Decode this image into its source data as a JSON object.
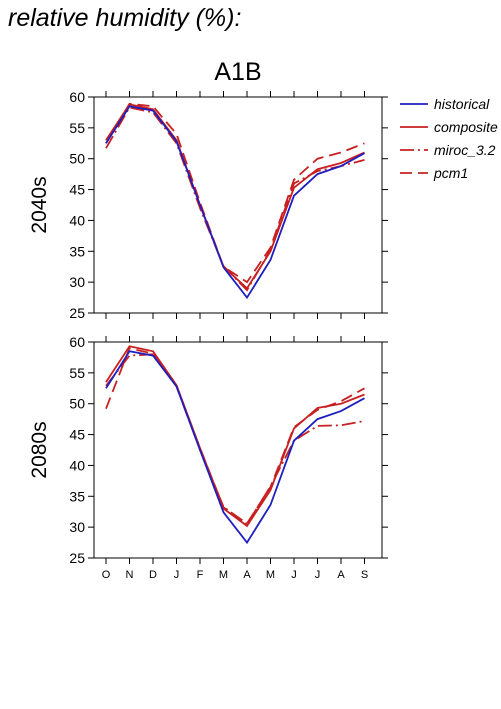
{
  "heading": "relative humidity (%):",
  "scenario": "A1B",
  "legend": {
    "placement": "right",
    "entries": [
      "historical",
      "composite",
      "miroc_3.2",
      "pcm1"
    ]
  },
  "colors": {
    "historical": "#1f1fbf",
    "composite": "#c82020",
    "miroc_3.2": "#c82020",
    "pcm1": "#c82020"
  },
  "chart_data": [
    {
      "type": "line",
      "title": "A1B",
      "ylabel": "2040s",
      "xlabel": "",
      "ylim": [
        25,
        60
      ],
      "yticks": [
        25,
        30,
        35,
        40,
        45,
        50,
        55,
        60
      ],
      "categories": [
        "O",
        "N",
        "D",
        "J",
        "F",
        "M",
        "A",
        "M",
        "J",
        "J",
        "A",
        "S"
      ],
      "series": [
        {
          "name": "historical",
          "values": [
            52.5,
            58.5,
            57.8,
            52.8,
            42.5,
            32.4,
            27.5,
            33.6,
            44.0,
            47.5,
            48.8,
            50.9
          ]
        },
        {
          "name": "composite",
          "values": [
            53.0,
            58.8,
            58.0,
            53.0,
            42.5,
            32.5,
            29.0,
            35.0,
            45.3,
            48.3,
            49.3,
            51.0
          ]
        },
        {
          "name": "miroc_3.2",
          "values": [
            51.7,
            58.3,
            57.5,
            52.5,
            42.0,
            32.6,
            28.7,
            35.2,
            46.0,
            48.0,
            48.8,
            49.8
          ]
        },
        {
          "name": "pcm1",
          "values": [
            52.5,
            58.9,
            58.5,
            54.0,
            42.9,
            32.5,
            30.0,
            35.6,
            46.6,
            50.0,
            51.0,
            52.5
          ]
        }
      ]
    },
    {
      "type": "line",
      "title": "",
      "ylabel": "2080s",
      "xlabel": "",
      "ylim": [
        25,
        60
      ],
      "yticks": [
        25,
        30,
        35,
        40,
        45,
        50,
        55,
        60
      ],
      "categories": [
        "O",
        "N",
        "D",
        "J",
        "F",
        "M",
        "A",
        "M",
        "J",
        "J",
        "A",
        "S"
      ],
      "series": [
        {
          "name": "historical",
          "values": [
            52.5,
            58.5,
            57.8,
            52.8,
            42.5,
            32.4,
            27.5,
            33.6,
            44.0,
            47.5,
            48.8,
            50.9
          ]
        },
        {
          "name": "composite",
          "values": [
            53.5,
            59.3,
            58.5,
            53.0,
            42.8,
            33.0,
            30.2,
            36.0,
            46.0,
            49.3,
            50.0,
            51.5
          ]
        },
        {
          "name": "miroc_3.2",
          "values": [
            52.9,
            57.8,
            58.0,
            52.8,
            42.5,
            33.3,
            30.5,
            36.6,
            44.0,
            46.4,
            46.5,
            47.2
          ]
        },
        {
          "name": "pcm1",
          "values": [
            49.2,
            59.0,
            58.1,
            52.9,
            42.8,
            33.2,
            30.6,
            36.5,
            46.2,
            49.0,
            50.4,
            52.5
          ]
        }
      ]
    }
  ]
}
